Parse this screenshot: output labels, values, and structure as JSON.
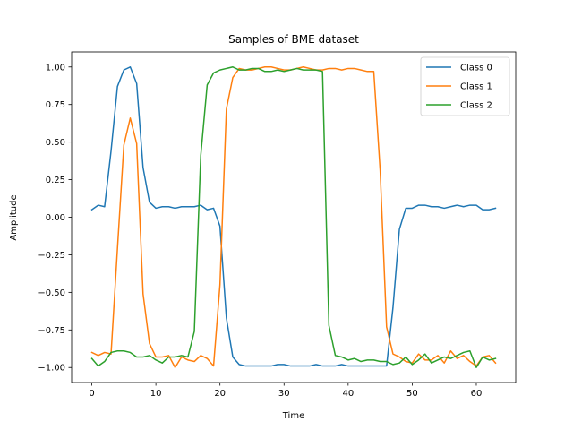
{
  "chart_data": {
    "type": "line",
    "title": "Samples of BME dataset",
    "xlabel": "Time",
    "ylabel": "Amplitude",
    "xlim": [
      -3.15,
      66.15
    ],
    "ylim": [
      -1.1,
      1.1
    ],
    "xticks": [
      0,
      10,
      20,
      30,
      40,
      50,
      60
    ],
    "yticks": [
      -1.0,
      -0.75,
      -0.5,
      -0.25,
      0.0,
      0.25,
      0.5,
      0.75,
      1.0
    ],
    "ytick_labels": [
      "−1.00",
      "−0.75",
      "−0.50",
      "−0.25",
      "0.00",
      "0.25",
      "0.50",
      "0.75",
      "1.00"
    ],
    "legend_position": "top-right",
    "x": [
      0,
      1,
      2,
      3,
      4,
      5,
      6,
      7,
      8,
      9,
      10,
      11,
      12,
      13,
      14,
      15,
      16,
      17,
      18,
      19,
      20,
      21,
      22,
      23,
      24,
      25,
      26,
      27,
      28,
      29,
      30,
      31,
      32,
      33,
      34,
      35,
      36,
      37,
      38,
      39,
      40,
      41,
      42,
      43,
      44,
      45,
      46,
      47,
      48,
      49,
      50,
      51,
      52,
      53,
      54,
      55,
      56,
      57,
      58,
      59,
      60,
      61,
      62,
      63
    ],
    "series": [
      {
        "name": "Class 0",
        "color": "#1f77b4",
        "values": [
          0.05,
          0.08,
          0.07,
          0.44,
          0.87,
          0.98,
          1.0,
          0.89,
          0.33,
          0.1,
          0.06,
          0.07,
          0.07,
          0.06,
          0.07,
          0.07,
          0.07,
          0.08,
          0.05,
          0.06,
          -0.06,
          -0.67,
          -0.93,
          -0.98,
          -0.99,
          -0.99,
          -0.99,
          -0.99,
          -0.99,
          -0.98,
          -0.98,
          -0.99,
          -0.99,
          -0.99,
          -0.99,
          -0.98,
          -0.99,
          -0.99,
          -0.99,
          -0.98,
          -0.99,
          -0.99,
          -0.99,
          -0.99,
          -0.99,
          -0.99,
          -0.99,
          -0.6,
          -0.08,
          0.06,
          0.06,
          0.08,
          0.08,
          0.07,
          0.07,
          0.06,
          0.07,
          0.08,
          0.07,
          0.08,
          0.08,
          0.05,
          0.05,
          0.06
        ]
      },
      {
        "name": "Class 1",
        "color": "#ff7f0e",
        "values": [
          -0.9,
          -0.92,
          -0.9,
          -0.91,
          -0.21,
          0.48,
          0.66,
          0.49,
          -0.51,
          -0.84,
          -0.93,
          -0.93,
          -0.92,
          -1.0,
          -0.93,
          -0.95,
          -0.96,
          -0.92,
          -0.94,
          -0.99,
          -0.45,
          0.72,
          0.93,
          0.99,
          0.98,
          0.98,
          0.99,
          1.0,
          1.0,
          0.99,
          0.98,
          0.98,
          0.99,
          1.0,
          0.99,
          0.98,
          0.98,
          0.99,
          0.99,
          0.98,
          0.99,
          0.99,
          0.98,
          0.97,
          0.97,
          0.31,
          -0.73,
          -0.91,
          -0.93,
          -0.96,
          -0.97,
          -0.91,
          -0.95,
          -0.95,
          -0.92,
          -0.97,
          -0.89,
          -0.94,
          -0.92,
          -0.96,
          -0.99,
          -0.93,
          -0.92,
          -0.97
        ]
      },
      {
        "name": "Class 2",
        "color": "#2ca02c",
        "values": [
          -0.94,
          -0.99,
          -0.96,
          -0.9,
          -0.89,
          -0.89,
          -0.9,
          -0.93,
          -0.93,
          -0.92,
          -0.95,
          -0.97,
          -0.93,
          -0.93,
          -0.92,
          -0.93,
          -0.76,
          0.41,
          0.88,
          0.96,
          0.98,
          0.99,
          1.0,
          0.98,
          0.98,
          0.99,
          0.99,
          0.97,
          0.97,
          0.98,
          0.97,
          0.98,
          0.99,
          0.98,
          0.98,
          0.98,
          0.97,
          -0.72,
          -0.92,
          -0.93,
          -0.95,
          -0.94,
          -0.96,
          -0.95,
          -0.95,
          -0.96,
          -0.96,
          -0.98,
          -0.97,
          -0.93,
          -0.98,
          -0.95,
          -0.91,
          -0.97,
          -0.95,
          -0.93,
          -0.94,
          -0.92,
          -0.9,
          -0.89,
          -1.0,
          -0.93,
          -0.95,
          -0.94
        ]
      }
    ]
  }
}
